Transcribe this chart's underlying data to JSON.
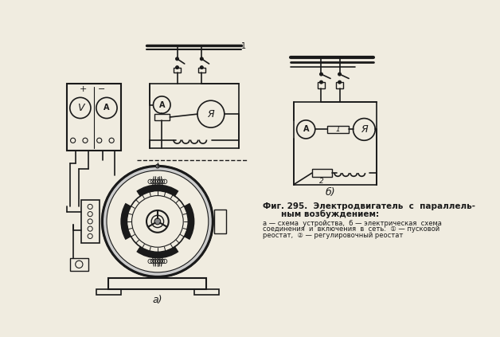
{
  "bg_color": "#f0ece0",
  "line_color": "#1a1a1a",
  "fig_width": 6.28,
  "fig_height": 4.23,
  "caption_line1": "Фиг. 295.  Электродвигатель  с  параллель-",
  "caption_line2": "ным возбуждением:",
  "caption_line3": "а — схема  устройства,  б — электрическая  схема",
  "caption_line4": "соединения  и  включения  в  сеть:  ① — пусковой",
  "caption_line5": "реостат,  ② — регулировочный реостат",
  "label_a": "а)",
  "label_b": "б)"
}
